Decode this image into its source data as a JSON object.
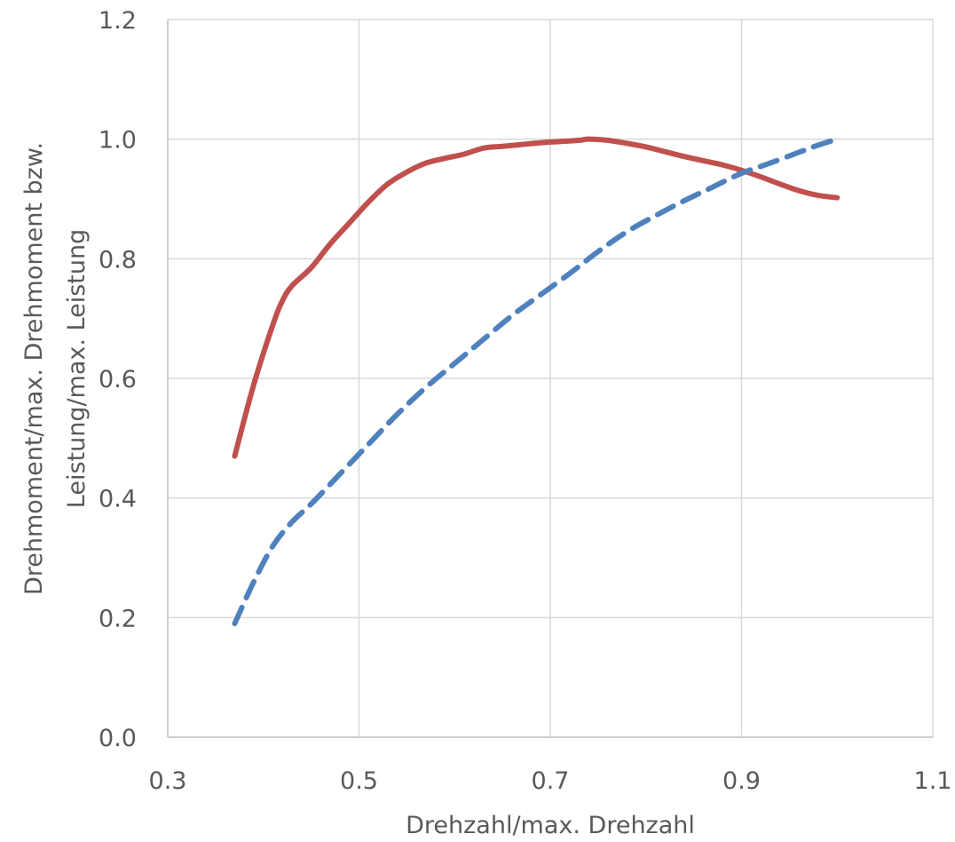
{
  "chart_data": {
    "type": "line",
    "title": "",
    "xlabel": "Drehzahl/max. Drehzahl",
    "ylabel_lines": [
      "Drehmoment/max. Drehmoment bzw.",
      "Leistung/max. Leistung"
    ],
    "xlim": [
      0.3,
      1.1
    ],
    "ylim": [
      0.0,
      1.2
    ],
    "x_ticks": [
      "0.3",
      "0.5",
      "0.7",
      "0.9",
      "1.1"
    ],
    "y_ticks": [
      "0.0",
      "0.2",
      "0.4",
      "0.6",
      "0.8",
      "1.0",
      "1.2"
    ],
    "grid": true,
    "legend": "none",
    "series": [
      {
        "color": "#c0504d",
        "style": "solid",
        "x": [
          0.37,
          0.39,
          0.41,
          0.42,
          0.43,
          0.45,
          0.47,
          0.49,
          0.51,
          0.53,
          0.55,
          0.57,
          0.59,
          0.61,
          0.63,
          0.65,
          0.67,
          0.69,
          0.71,
          0.73,
          0.74,
          0.76,
          0.78,
          0.8,
          0.82,
          0.84,
          0.86,
          0.88,
          0.9,
          0.92,
          0.94,
          0.96,
          0.98,
          1.0
        ],
        "y": [
          0.47,
          0.59,
          0.69,
          0.73,
          0.755,
          0.785,
          0.825,
          0.86,
          0.895,
          0.925,
          0.945,
          0.96,
          0.968,
          0.975,
          0.985,
          0.988,
          0.991,
          0.994,
          0.996,
          0.998,
          1.0,
          0.998,
          0.993,
          0.987,
          0.979,
          0.971,
          0.964,
          0.957,
          0.948,
          0.937,
          0.925,
          0.914,
          0.906,
          0.902
        ]
      },
      {
        "color": "#4f81bd",
        "style": "dashed",
        "x": [
          0.37,
          0.39,
          0.41,
          0.43,
          0.45,
          0.48,
          0.51,
          0.54,
          0.57,
          0.6,
          0.63,
          0.66,
          0.69,
          0.72,
          0.75,
          0.78,
          0.81,
          0.84,
          0.87,
          0.9,
          0.93,
          0.96,
          0.98,
          1.0
        ],
        "y": [
          0.19,
          0.26,
          0.32,
          0.36,
          0.39,
          0.44,
          0.49,
          0.54,
          0.585,
          0.625,
          0.665,
          0.705,
          0.74,
          0.775,
          0.812,
          0.845,
          0.872,
          0.897,
          0.92,
          0.943,
          0.96,
          0.978,
          0.99,
          1.0
        ]
      }
    ]
  }
}
